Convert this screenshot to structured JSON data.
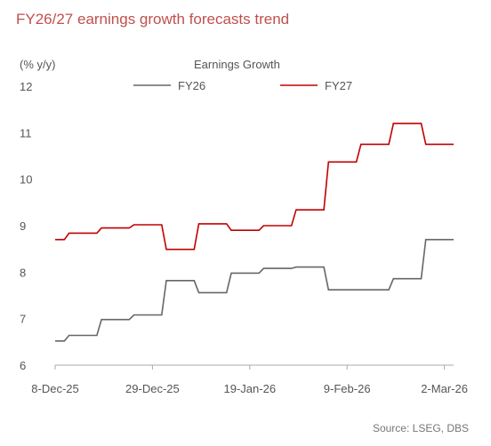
{
  "chart_data": {
    "type": "line",
    "title": "FY26/27 earnings growth forecasts trend",
    "ylabel": "(% y/y)",
    "legend_title": "Earnings Growth",
    "legend_position": "top-center",
    "source": "Source: LSEG, DBS",
    "grid": false,
    "ylim": [
      6,
      12
    ],
    "yticks": [
      "6",
      "7",
      "8",
      "9",
      "10",
      "11",
      "12"
    ],
    "xlim": [
      "2025-12-08",
      "2026-03-04"
    ],
    "xtick_labels": [
      "8-Dec-25",
      "29-Dec-25",
      "19-Jan-26",
      "9-Feb-26",
      "2-Mar-26"
    ],
    "xtick_dates": [
      "2025-12-08",
      "2025-12-29",
      "2026-01-19",
      "2026-02-09",
      "2026-03-02"
    ],
    "series": [
      {
        "name": "FY26",
        "color": "#666666",
        "points": [
          [
            "2025-12-08",
            6.52
          ],
          [
            "2025-12-10",
            6.52
          ],
          [
            "2025-12-11",
            6.64
          ],
          [
            "2025-12-17",
            6.64
          ],
          [
            "2025-12-18",
            6.98
          ],
          [
            "2025-12-24",
            6.98
          ],
          [
            "2025-12-25",
            7.08
          ],
          [
            "2025-12-31",
            7.08
          ],
          [
            "2026-01-01",
            7.82
          ],
          [
            "2026-01-07",
            7.82
          ],
          [
            "2026-01-08",
            7.56
          ],
          [
            "2026-01-14",
            7.56
          ],
          [
            "2026-01-15",
            7.98
          ],
          [
            "2026-01-21",
            7.98
          ],
          [
            "2026-01-22",
            8.08
          ],
          [
            "2026-01-28",
            8.08
          ],
          [
            "2026-01-29",
            8.11
          ],
          [
            "2026-02-04",
            8.11
          ],
          [
            "2026-02-05",
            7.62
          ],
          [
            "2026-02-18",
            7.62
          ],
          [
            "2026-02-19",
            7.86
          ],
          [
            "2026-02-25",
            7.86
          ],
          [
            "2026-02-26",
            8.7
          ],
          [
            "2026-03-04",
            8.7
          ]
        ]
      },
      {
        "name": "FY27",
        "color": "#c00000",
        "points": [
          [
            "2025-12-08",
            8.7
          ],
          [
            "2025-12-10",
            8.7
          ],
          [
            "2025-12-11",
            8.84
          ],
          [
            "2025-12-17",
            8.84
          ],
          [
            "2025-12-18",
            8.95
          ],
          [
            "2025-12-24",
            8.95
          ],
          [
            "2025-12-25",
            9.02
          ],
          [
            "2025-12-31",
            9.02
          ],
          [
            "2026-01-01",
            8.49
          ],
          [
            "2026-01-07",
            8.49
          ],
          [
            "2026-01-08",
            9.04
          ],
          [
            "2026-01-14",
            9.04
          ],
          [
            "2026-01-15",
            8.9
          ],
          [
            "2026-01-21",
            8.9
          ],
          [
            "2026-01-22",
            9.0
          ],
          [
            "2026-01-28",
            9.0
          ],
          [
            "2026-01-29",
            9.34
          ],
          [
            "2026-02-04",
            9.34
          ],
          [
            "2026-02-05",
            10.37
          ],
          [
            "2026-02-11",
            10.37
          ],
          [
            "2026-02-12",
            10.75
          ],
          [
            "2026-02-18",
            10.75
          ],
          [
            "2026-02-19",
            11.2
          ],
          [
            "2026-02-25",
            11.2
          ],
          [
            "2026-02-26",
            10.75
          ],
          [
            "2026-03-04",
            10.75
          ]
        ]
      }
    ]
  }
}
